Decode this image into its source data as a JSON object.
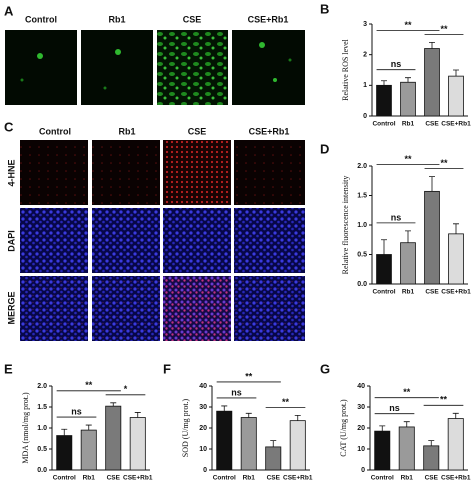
{
  "image_panels": {
    "A": {
      "label": "A",
      "columns": [
        "Control",
        "Rb1",
        "CSE",
        "CSE+Rb1"
      ]
    },
    "C": {
      "label": "C",
      "columns": [
        "Control",
        "Rb1",
        "CSE",
        "CSE+Rb1"
      ],
      "rows": [
        "4-HNE",
        "DAPI",
        "MERGE"
      ]
    }
  },
  "chart_data": [
    {
      "type": "bar",
      "panel_label": "B",
      "y_label": "Relative ROS level",
      "categories": [
        "Control",
        "Rb1",
        "CSE",
        "CSE+Rb1"
      ],
      "values": [
        1.0,
        1.1,
        2.2,
        1.3
      ],
      "errors": [
        0.15,
        0.15,
        0.2,
        0.2
      ],
      "colors": [
        "#111111",
        "#9a9a9a",
        "#7a7a7a",
        "#dcdcdc"
      ],
      "ylim": [
        0,
        3
      ],
      "yticks": [
        0,
        1,
        2,
        3
      ],
      "comparisons": [
        {
          "label": "**",
          "from": 0,
          "to": 2
        },
        {
          "label": "ns",
          "from": 0,
          "to": 1
        },
        {
          "label": "**",
          "from": 2,
          "to": 3
        }
      ]
    },
    {
      "type": "bar",
      "panel_label": "D",
      "y_label": "Relative fluorescence intensity",
      "categories": [
        "Control",
        "Rb1",
        "CSE",
        "CSE+Rb1"
      ],
      "values": [
        0.5,
        0.7,
        1.57,
        0.85
      ],
      "errors": [
        0.25,
        0.2,
        0.25,
        0.17
      ],
      "colors": [
        "#111111",
        "#9a9a9a",
        "#7a7a7a",
        "#dcdcdc"
      ],
      "ylim": [
        0,
        2
      ],
      "yticks": [
        {
          "value": 0,
          "label": "0.0"
        },
        0.5,
        {
          "value": 1,
          "label": "1.0"
        },
        1.5,
        {
          "value": 2,
          "label": "2.0"
        }
      ],
      "comparisons": [
        {
          "label": "**",
          "from": 0,
          "to": 2
        },
        {
          "label": "ns",
          "from": 0,
          "to": 1
        },
        {
          "label": "**",
          "from": 2,
          "to": 3
        }
      ]
    },
    {
      "type": "bar",
      "panel_label": "E",
      "y_label": "MDA (nmol/mg prot.)",
      "categories": [
        "Control",
        "Rb1",
        "CSE",
        "CSE+Rb1"
      ],
      "values": [
        0.82,
        0.95,
        1.52,
        1.25
      ],
      "errors": [
        0.15,
        0.12,
        0.08,
        0.12
      ],
      "colors": [
        "#111111",
        "#9a9a9a",
        "#7a7a7a",
        "#dcdcdc"
      ],
      "ylim": [
        0,
        2
      ],
      "yticks": [
        {
          "value": 0,
          "label": "0.0"
        },
        0.5,
        {
          "value": 1,
          "label": "1.0"
        },
        1.5,
        {
          "value": 2,
          "label": "2.0"
        }
      ],
      "comparisons": [
        {
          "label": "**",
          "from": 0,
          "to": 2
        },
        {
          "label": "ns",
          "from": 0,
          "to": 1
        },
        {
          "label": "*",
          "from": 2,
          "to": 3
        }
      ]
    },
    {
      "type": "bar",
      "panel_label": "F",
      "y_label": "SOD (U/mg prot.)",
      "categories": [
        "Control",
        "Rb1",
        "CSE",
        "CSE+Rb1"
      ],
      "values": [
        28,
        25,
        11,
        23.5
      ],
      "errors": [
        2.5,
        2,
        3,
        2.5
      ],
      "colors": [
        "#111111",
        "#9a9a9a",
        "#7a7a7a",
        "#dcdcdc"
      ],
      "ylim": [
        0,
        40
      ],
      "yticks": [
        0,
        10,
        20,
        30,
        40
      ],
      "comparisons": [
        {
          "label": "**",
          "from": 0,
          "to": 2
        },
        {
          "label": "ns",
          "from": 0,
          "to": 1
        },
        {
          "label": "**",
          "from": 2,
          "to": 3
        }
      ]
    },
    {
      "type": "bar",
      "panel_label": "G",
      "y_label": "CAT (U/mg prot.)",
      "categories": [
        "Control",
        "Rb1",
        "CSE",
        "CSE+Rb1"
      ],
      "values": [
        18.5,
        20.5,
        11.5,
        24.5
      ],
      "errors": [
        2.5,
        2.5,
        2.5,
        2.5
      ],
      "colors": [
        "#111111",
        "#9a9a9a",
        "#7a7a7a",
        "#dcdcdc"
      ],
      "ylim": [
        0,
        40
      ],
      "yticks": [
        0,
        10,
        20,
        30,
        40
      ],
      "comparisons": [
        {
          "label": "**",
          "from": 0,
          "to": 2
        },
        {
          "label": "ns",
          "from": 0,
          "to": 1
        },
        {
          "label": "**",
          "from": 2,
          "to": 3
        }
      ]
    }
  ]
}
